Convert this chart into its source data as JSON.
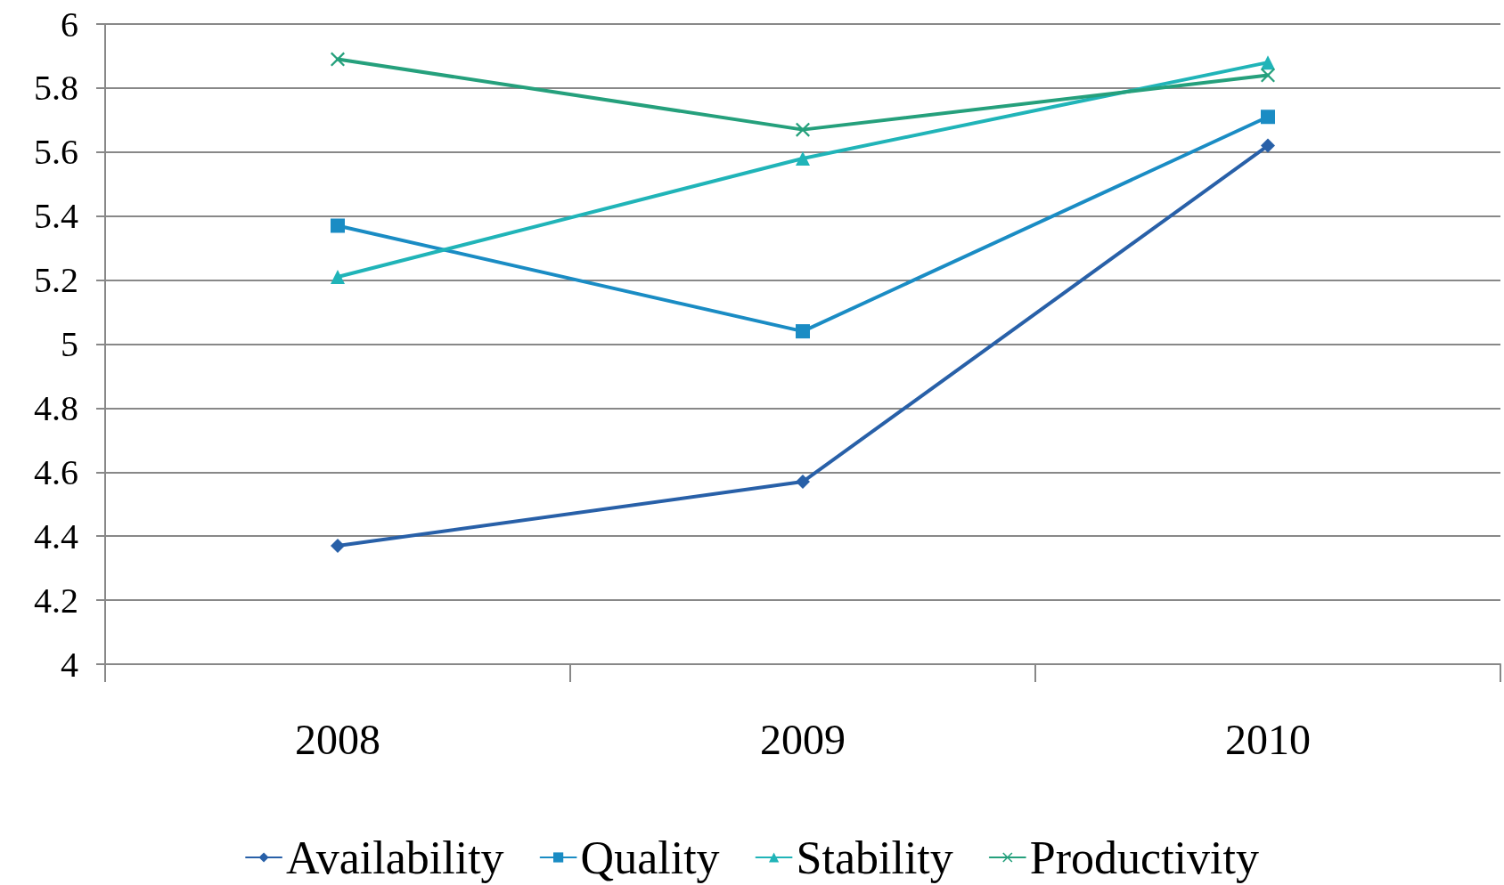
{
  "chart_data": {
    "type": "line",
    "categories": [
      "2008",
      "2009",
      "2010"
    ],
    "series": [
      {
        "name": "Availability",
        "color": "#2860a8",
        "marker": "diamond",
        "values": [
          4.37,
          4.57,
          5.62
        ]
      },
      {
        "name": "Quality",
        "color": "#1a8cc4",
        "marker": "square",
        "values": [
          5.37,
          5.04,
          5.71
        ]
      },
      {
        "name": "Stability",
        "color": "#20b4b8",
        "marker": "triangle",
        "values": [
          5.21,
          5.58,
          5.88
        ]
      },
      {
        "name": "Productivity",
        "color": "#25a07c",
        "marker": "cross",
        "values": [
          5.89,
          5.67,
          5.84
        ]
      }
    ],
    "ylim": [
      4,
      6
    ],
    "yticks": [
      4,
      4.2,
      4.4,
      4.6,
      4.8,
      5,
      5.2,
      5.4,
      5.6,
      5.8,
      6
    ],
    "grid": "y",
    "legend": "bottom"
  }
}
